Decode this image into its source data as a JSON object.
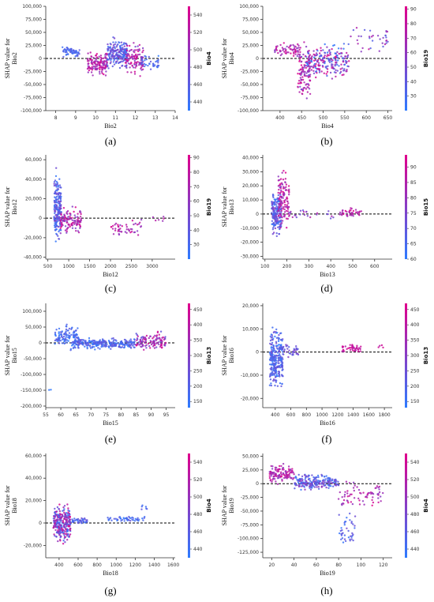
{
  "colors": {
    "low": "#2d7bff",
    "high": "#e0008c",
    "zero_line": "#000000"
  },
  "chart_data": [
    {
      "type": "scatter",
      "panel": "(a)",
      "xlabel": "Bio2",
      "ylabel_line1": "SHAP value for",
      "ylabel_line2": "Bio2",
      "colorbar_label": "Bio4",
      "colorbar_range": [
        430,
        550
      ],
      "colorbar_ticks": [
        "440",
        "460",
        "480",
        "500",
        "520",
        "540"
      ],
      "xlim": [
        7.5,
        14
      ],
      "ylim": [
        -100000,
        100000
      ],
      "xticks": [
        "8",
        "9",
        "10",
        "11",
        "12",
        "13",
        "14"
      ],
      "yticks": [
        "-100,000",
        "-75,000",
        "-50,000",
        "-25,000",
        "0",
        "25,000",
        "50,000",
        "75,000",
        "100,000"
      ],
      "clusters": [
        {
          "x": [
            8.3,
            9.2
          ],
          "y": [
            0,
            25000
          ],
          "c": [
            0.05,
            0.3
          ],
          "n": 60
        },
        {
          "x": [
            9.6,
            10.6
          ],
          "y": [
            -40000,
            20000
          ],
          "c": [
            0.5,
            1.0
          ],
          "n": 140
        },
        {
          "x": [
            10.6,
            11.6
          ],
          "y": [
            -25000,
            45000
          ],
          "c": [
            0.0,
            0.55
          ],
          "n": 200
        },
        {
          "x": [
            11.5,
            12.4
          ],
          "y": [
            -40000,
            35000
          ],
          "c": [
            0.4,
            1.0
          ],
          "n": 120
        },
        {
          "x": [
            12.3,
            13.2
          ],
          "y": [
            -30000,
            10000
          ],
          "c": [
            0.0,
            0.3
          ],
          "n": 35
        }
      ]
    },
    {
      "type": "scatter",
      "panel": "(b)",
      "xlabel": "Bio4",
      "ylabel_line1": "SHAP value for",
      "ylabel_line2": "Bio4",
      "colorbar_label": "Bio19",
      "colorbar_range": [
        20,
        92
      ],
      "colorbar_ticks": [
        "30",
        "40",
        "50",
        "60",
        "70",
        "80",
        "90"
      ],
      "xlim": [
        360,
        660
      ],
      "ylim": [
        -100000,
        100000
      ],
      "xticks": [
        "400",
        "450",
        "500",
        "550",
        "600",
        "650"
      ],
      "yticks": [
        "-100,000",
        "-75,000",
        "-50,000",
        "-25,000",
        "0",
        "25,000",
        "50,000",
        "75,000",
        "100,000"
      ],
      "clusters": [
        {
          "x": [
            385,
            445
          ],
          "y": [
            0,
            35000
          ],
          "c": [
            0.5,
            1.0
          ],
          "n": 60
        },
        {
          "x": [
            440,
            470
          ],
          "y": [
            -95000,
            40000
          ],
          "c": [
            0.4,
            1.0
          ],
          "n": 110
        },
        {
          "x": [
            460,
            560
          ],
          "y": [
            -45000,
            35000
          ],
          "c": [
            0.0,
            1.0
          ],
          "n": 220
        },
        {
          "x": [
            560,
            650
          ],
          "y": [
            0,
            75000
          ],
          "c": [
            0.2,
            0.9
          ],
          "n": 35
        }
      ]
    },
    {
      "type": "scatter",
      "panel": "(c)",
      "xlabel": "Bio12",
      "ylabel_line1": "SHAP value for",
      "ylabel_line2": "Bio12",
      "colorbar_label": "Bio19",
      "colorbar_range": [
        20,
        92
      ],
      "colorbar_ticks": [
        "30",
        "40",
        "50",
        "60",
        "70",
        "80",
        "90"
      ],
      "xlim": [
        450,
        3550
      ],
      "ylim": [
        -42000,
        65000
      ],
      "xticks": [
        "500",
        "1000",
        "1500",
        "2000",
        "2500",
        "3000"
      ],
      "yticks": [
        "-40,000",
        "-20,000",
        "0",
        "20,000",
        "40,000",
        "60,000"
      ],
      "clusters": [
        {
          "x": [
            650,
            820
          ],
          "y": [
            -35000,
            55000
          ],
          "c": [
            0.0,
            0.45
          ],
          "n": 200
        },
        {
          "x": [
            800,
            1300
          ],
          "y": [
            -20000,
            15000
          ],
          "c": [
            0.4,
            1.0
          ],
          "n": 120
        },
        {
          "x": [
            2000,
            2800
          ],
          "y": [
            -20000,
            0
          ],
          "c": [
            0.5,
            1.0
          ],
          "n": 50
        },
        {
          "x": [
            3000,
            3300
          ],
          "y": [
            -5000,
            5000
          ],
          "c": [
            0.6,
            0.9
          ],
          "n": 6
        }
      ]
    },
    {
      "type": "scatter",
      "panel": "(d)",
      "xlabel": "Bio13",
      "ylabel_line1": "SHAP value for",
      "ylabel_line2": "Bio13",
      "colorbar_label": "Bio15",
      "colorbar_range": [
        60,
        94
      ],
      "colorbar_ticks": [
        "60",
        "65",
        "70",
        "75",
        "80",
        "85",
        "90"
      ],
      "xlim": [
        90,
        680
      ],
      "ylim": [
        -32000,
        42000
      ],
      "xticks": [
        "100",
        "200",
        "300",
        "400",
        "500",
        "600"
      ],
      "yticks": [
        "-30,000",
        "-20,000",
        "-10,000",
        "0",
        "10,000",
        "20,000",
        "30,000",
        "40,000"
      ],
      "clusters": [
        {
          "x": [
            130,
            175
          ],
          "y": [
            -20000,
            20000
          ],
          "c": [
            0.0,
            0.55
          ],
          "n": 180
        },
        {
          "x": [
            160,
            210
          ],
          "y": [
            -15000,
            35000
          ],
          "c": [
            0.5,
            1.0
          ],
          "n": 120
        },
        {
          "x": [
            210,
            420
          ],
          "y": [
            -5000,
            5000
          ],
          "c": [
            0.3,
            0.8
          ],
          "n": 25
        },
        {
          "x": [
            440,
            540
          ],
          "y": [
            -3000,
            5000
          ],
          "c": [
            0.6,
            1.0
          ],
          "n": 40
        }
      ]
    },
    {
      "type": "scatter",
      "panel": "(e)",
      "xlabel": "Bio15",
      "ylabel_line1": "SHAP value for",
      "ylabel_line2": "Bio15",
      "colorbar_label": "Bio13",
      "colorbar_range": [
        130,
        470
      ],
      "colorbar_ticks": [
        "150",
        "200",
        "250",
        "300",
        "350",
        "400",
        "450"
      ],
      "xlim": [
        55,
        98
      ],
      "ylim": [
        -205000,
        125000
      ],
      "xticks": [
        "55",
        "60",
        "65",
        "70",
        "75",
        "80",
        "85",
        "90",
        "95"
      ],
      "yticks": [
        "-200,000",
        "-150,000",
        "-100,000",
        "-50,000",
        "0",
        "50,000",
        "100,000"
      ],
      "clusters": [
        {
          "x": [
            58,
            66
          ],
          "y": [
            -30000,
            70000
          ],
          "c": [
            0.0,
            0.3
          ],
          "n": 120
        },
        {
          "x": [
            64,
            85
          ],
          "y": [
            -25000,
            20000
          ],
          "c": [
            0.0,
            0.35
          ],
          "n": 260
        },
        {
          "x": [
            85,
            95
          ],
          "y": [
            -30000,
            40000
          ],
          "c": [
            0.3,
            1.0
          ],
          "n": 120
        },
        {
          "x": [
            56,
            58
          ],
          "y": [
            -190000,
            -110000
          ],
          "c": [
            0.0,
            0.1
          ],
          "n": 2
        }
      ]
    },
    {
      "type": "scatter",
      "panel": "(f)",
      "xlabel": "Bio16",
      "ylabel_line1": "SHAP value for",
      "ylabel_line2": "Bio16",
      "colorbar_label": "Bio13",
      "colorbar_range": [
        130,
        470
      ],
      "colorbar_ticks": [
        "150",
        "200",
        "250",
        "300",
        "350",
        "400",
        "450"
      ],
      "xlim": [
        240,
        1900
      ],
      "ylim": [
        -24000,
        21000
      ],
      "xticks": [
        "400",
        "600",
        "800",
        "1000",
        "1200",
        "1400",
        "1600",
        "1800"
      ],
      "yticks": [
        "-20,000",
        "-10,000",
        "0",
        "10,000",
        "20,000"
      ],
      "clusters": [
        {
          "x": [
            330,
            500
          ],
          "y": [
            -20000,
            15000
          ],
          "c": [
            0.0,
            0.4
          ],
          "n": 280
        },
        {
          "x": [
            500,
            700
          ],
          "y": [
            -3000,
            4000
          ],
          "c": [
            0.2,
            0.5
          ],
          "n": 35
        },
        {
          "x": [
            1250,
            1500
          ],
          "y": [
            -1000,
            4000
          ],
          "c": [
            0.7,
            1.0
          ],
          "n": 45
        },
        {
          "x": [
            1700,
            1800
          ],
          "y": [
            0,
            5000
          ],
          "c": [
            0.7,
            1.0
          ],
          "n": 4
        }
      ]
    },
    {
      "type": "scatter",
      "panel": "(g)",
      "xlabel": "Bio18",
      "ylabel_line1": "SHAP value for",
      "ylabel_line2": "Bio18",
      "colorbar_label": "Bio4",
      "colorbar_range": [
        430,
        550
      ],
      "colorbar_ticks": [
        "440",
        "460",
        "480",
        "500",
        "520",
        "540"
      ],
      "xlim": [
        260,
        1620
      ],
      "ylim": [
        -31000,
        62000
      ],
      "xticks": [
        "400",
        "600",
        "800",
        "1000",
        "1200",
        "1400",
        "1600"
      ],
      "yticks": [
        "-20,000",
        "0",
        "20,000",
        "40,000",
        "60,000"
      ],
      "clusters": [
        {
          "x": [
            340,
            520
          ],
          "y": [
            -20000,
            20000
          ],
          "c": [
            0.0,
            1.0
          ],
          "n": 280
        },
        {
          "x": [
            520,
            700
          ],
          "y": [
            -2000,
            6000
          ],
          "c": [
            0.0,
            0.4
          ],
          "n": 40
        },
        {
          "x": [
            900,
            1300
          ],
          "y": [
            0,
            7000
          ],
          "c": [
            0.0,
            0.35
          ],
          "n": 50
        },
        {
          "x": [
            1250,
            1350
          ],
          "y": [
            8000,
            18000
          ],
          "c": [
            0.0,
            0.3
          ],
          "n": 6
        }
      ]
    },
    {
      "type": "scatter",
      "panel": "(h)",
      "xlabel": "Bio19",
      "ylabel_line1": "SHAP value for",
      "ylabel_line2": "Bio19",
      "colorbar_label": "Bio4",
      "colorbar_range": [
        430,
        550
      ],
      "colorbar_ticks": [
        "440",
        "460",
        "480",
        "500",
        "520",
        "540"
      ],
      "xlim": [
        12,
        128
      ],
      "ylim": [
        -135000,
        55000
      ],
      "xticks": [
        "20",
        "40",
        "60",
        "80",
        "100",
        "120"
      ],
      "yticks": [
        "-125,000",
        "-100,000",
        "-75,000",
        "-50,000",
        "-25,000",
        "0",
        "25,000",
        "50,000"
      ],
      "clusters": [
        {
          "x": [
            18,
            40
          ],
          "y": [
            -5000,
            40000
          ],
          "c": [
            0.5,
            1.0
          ],
          "n": 120
        },
        {
          "x": [
            40,
            80
          ],
          "y": [
            -15000,
            20000
          ],
          "c": [
            0.0,
            0.6
          ],
          "n": 220
        },
        {
          "x": [
            80,
            95
          ],
          "y": [
            -130000,
            -40000
          ],
          "c": [
            0.0,
            0.4
          ],
          "n": 40
        },
        {
          "x": [
            80,
            120
          ],
          "y": [
            -50000,
            10000
          ],
          "c": [
            0.5,
            1.0
          ],
          "n": 70
        }
      ]
    }
  ]
}
